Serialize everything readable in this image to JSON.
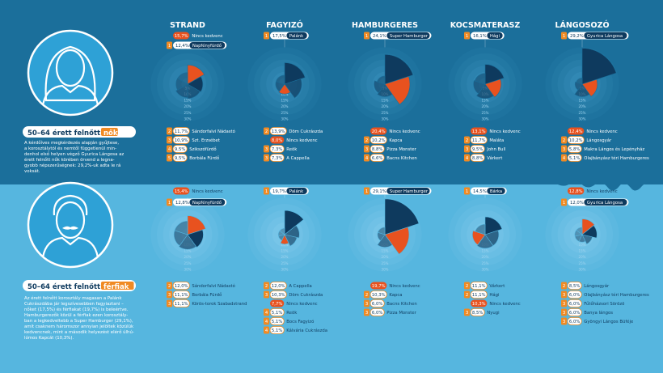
{
  "categories": [
    "STRAND",
    "FAGYIZÓ",
    "HAMBURGERES",
    "KOCSMATERASZ",
    "LÁNGOSOZÓ"
  ],
  "colors": {
    "top_bg": "#1b6f9b",
    "bottom_bg": "#56b6df",
    "navy": "#0e3a5e",
    "orange": "#e8521f",
    "rank_badge": "#f08a23"
  },
  "ring_labels": [
    "5%",
    "10%",
    "15%",
    "20%",
    "25%",
    "30%"
  ],
  "groups": [
    {
      "id": "women",
      "title_main": "50–64 érett felnőtt",
      "title_highlight": "nők",
      "description": [
        "A kérdőíves megkérdezés alapján gyűjtese,",
        "a korosztálytól és nemtől függetlenül min-",
        "denhol első helyen végző Gyurica Lángosa az",
        "érett felnőtt nők körében örvend a legna-",
        "gyobb népszerűségnek: 29,2%-uk adta le rá",
        "voksát."
      ],
      "columns": [
        {
          "tags": [
            {
              "pct": "15,7%",
              "label": "Nincs kedvenc",
              "rank": "",
              "kind": "none"
            },
            {
              "pct": "12,4%",
              "label": "Napfényfürdő",
              "rank": "1",
              "kind": "top"
            }
          ],
          "ranks": [
            {
              "rank": "2",
              "pct": "11,7%",
              "label": "Sándorfalvi Nádastó",
              "kind": "rank"
            },
            {
              "rank": "3",
              "pct": "10,9%",
              "label": "Szt. Erzsébet",
              "kind": "rank"
            },
            {
              "rank": "4",
              "pct": "9,5%",
              "label": "Szikszófürdő",
              "kind": "rank"
            },
            {
              "rank": "5",
              "pct": "9,5%",
              "label": "Borbála Fürdő",
              "kind": "rank"
            }
          ]
        },
        {
          "tags": [
            {
              "pct": "17,5%",
              "label": "Palánk",
              "rank": "1",
              "kind": "top"
            }
          ],
          "ranks": [
            {
              "rank": "2",
              "pct": "13,9%",
              "label": "Döm Cukrászda",
              "kind": "rank"
            },
            {
              "rank": "",
              "pct": "8,0%",
              "label": "Nincs kedvenc",
              "kind": "none"
            },
            {
              "rank": "3",
              "pct": "7,3%",
              "label": "Reök",
              "kind": "rank"
            },
            {
              "rank": "3",
              "pct": "7,3%",
              "label": "A Cappella",
              "kind": "rank"
            }
          ]
        },
        {
          "tags": [
            {
              "pct": "24,1%",
              "label": "Super Hamburger",
              "rank": "1",
              "kind": "top"
            }
          ],
          "ranks": [
            {
              "rank": "",
              "pct": "20,4%",
              "label": "Nincs kedvenc",
              "kind": "none"
            },
            {
              "rank": "2",
              "pct": "10,2%",
              "label": "Kapca",
              "kind": "rank"
            },
            {
              "rank": "3",
              "pct": "8,8%",
              "label": "Pizza Monster",
              "kind": "rank"
            },
            {
              "rank": "4",
              "pct": "6,6%",
              "label": "Bacns Kitchen",
              "kind": "rank"
            }
          ]
        },
        {
          "tags": [
            {
              "pct": "16,1%",
              "label": "Hági",
              "rank": "1",
              "kind": "top"
            }
          ],
          "ranks": [
            {
              "rank": "",
              "pct": "13,1%",
              "label": "Nincs kedvenc",
              "kind": "none"
            },
            {
              "rank": "2",
              "pct": "11,7%",
              "label": "Maláta",
              "kind": "rank"
            },
            {
              "rank": "3",
              "pct": "9,5%",
              "label": "John Bull",
              "kind": "rank"
            },
            {
              "rank": "4",
              "pct": "8,8%",
              "label": "Várkert",
              "kind": "rank"
            }
          ]
        },
        {
          "tags": [
            {
              "pct": "29,2%",
              "label": "Gyurica Lángosa",
              "rank": "1",
              "kind": "top"
            }
          ],
          "ranks": [
            {
              "rank": "",
              "pct": "12,4%",
              "label": "Nincs kedvenc",
              "kind": "none"
            },
            {
              "rank": "2",
              "pct": "10,2%",
              "label": "Lángosgyár",
              "kind": "rank"
            },
            {
              "rank": "3",
              "pct": "5,8%",
              "label": "Makra Lángos és Lepényház",
              "kind": "rank"
            },
            {
              "rank": "4",
              "pct": "5,1%",
              "label": "Olajbányász téri Hamburgeres",
              "kind": "rank"
            }
          ]
        }
      ]
    },
    {
      "id": "men",
      "title_main": "50–64 érett felnőtt",
      "title_highlight": "férfiak",
      "description": [
        "Az érett felnőtt korosztály magasan a Palánk",
        "Cukrászdába jár legszívesebben fagyiaztani –",
        "nőket (17,5%) és férfiakat (19,7%) is beleértve.",
        "Hamburgerezők közül a férfiak ezen korosztály-",
        "ban a legkedveltebb a Super Hamburger (29,1%),",
        "amit csaknem háromszor annyian jelöltek közülük",
        "kedvencnek, mint a második helyezést elérő úlhú-",
        "lómos Kapcát (10,3%)."
      ],
      "columns": [
        {
          "tags": [
            {
              "pct": "15,4%",
              "label": "Nincs kedvenc",
              "rank": "",
              "kind": "none"
            },
            {
              "pct": "12,8%",
              "label": "Napfényfürdő",
              "rank": "1",
              "kind": "top"
            }
          ],
          "ranks": [
            {
              "rank": "2",
              "pct": "12,0%",
              "label": "Sándorfalvi Nádastó",
              "kind": "rank"
            },
            {
              "rank": "3",
              "pct": "11,1%",
              "label": "Borbála Fürdő",
              "kind": "rank"
            },
            {
              "rank": "3",
              "pct": "11,1%",
              "label": "Körös-torok Szabadstrand",
              "kind": "rank"
            }
          ]
        },
        {
          "tags": [
            {
              "pct": "19,7%",
              "label": "Palánk",
              "rank": "1",
              "kind": "top"
            }
          ],
          "ranks": [
            {
              "rank": "2",
              "pct": "12,0%",
              "label": "A Cappella",
              "kind": "rank"
            },
            {
              "rank": "3",
              "pct": "10,3%",
              "label": "Döm Cukrászda",
              "kind": "rank"
            },
            {
              "rank": "",
              "pct": "7,7%",
              "label": "Nincs kedvenc",
              "kind": "none"
            },
            {
              "rank": "4",
              "pct": "5,1%",
              "label": "Reök",
              "kind": "rank"
            },
            {
              "rank": "4",
              "pct": "5,1%",
              "label": "Bocs Fagyizó",
              "kind": "rank"
            },
            {
              "rank": "4",
              "pct": "5,1%",
              "label": "Kálvária Cukrászda",
              "kind": "rank"
            }
          ]
        },
        {
          "tags": [
            {
              "pct": "29,1%",
              "label": "Super Hamburger",
              "rank": "1",
              "kind": "top"
            }
          ],
          "ranks": [
            {
              "rank": "",
              "pct": "19,7%",
              "label": "Nincs kedvenc",
              "kind": "none"
            },
            {
              "rank": "2",
              "pct": "10,3%",
              "label": "Kapca",
              "kind": "rank"
            },
            {
              "rank": "3",
              "pct": "6,0%",
              "label": "Bacns Kitchen",
              "kind": "rank"
            },
            {
              "rank": "3",
              "pct": "6,0%",
              "label": "Pizza Monster",
              "kind": "rank"
            }
          ]
        },
        {
          "tags": [
            {
              "pct": "14,5%",
              "label": "Bárka",
              "rank": "1",
              "kind": "top"
            }
          ],
          "ranks": [
            {
              "rank": "2",
              "pct": "11,1%",
              "label": "Várkert",
              "kind": "rank"
            },
            {
              "rank": "2",
              "pct": "11,1%",
              "label": "Hági",
              "kind": "rank"
            },
            {
              "rank": "",
              "pct": "10,3%",
              "label": "Nincs kedvenc",
              "kind": "none"
            },
            {
              "rank": "3",
              "pct": "8,5%",
              "label": "Nyugi",
              "kind": "rank"
            }
          ]
        },
        {
          "tags": [
            {
              "pct": "12,8%",
              "label": "Nincs kedvenc",
              "rank": "",
              "kind": "none"
            },
            {
              "pct": "12,0%",
              "label": "Gyurica Lángosa",
              "rank": "1",
              "kind": "top"
            }
          ],
          "ranks": [
            {
              "rank": "2",
              "pct": "8,5%",
              "label": "Lángosgyár",
              "kind": "rank"
            },
            {
              "rank": "3",
              "pct": "6,0%",
              "label": "Olajbányász téri Hamburgeres",
              "kind": "rank"
            },
            {
              "rank": "3",
              "pct": "6,0%",
              "label": "Fűtőházsori Sörözö",
              "kind": "rank"
            },
            {
              "rank": "3",
              "pct": "6,0%",
              "label": "Banya lángos",
              "kind": "rank"
            },
            {
              "rank": "3",
              "pct": "6,0%",
              "label": "Gyöngyi Lángos Büféje",
              "kind": "rank"
            }
          ]
        }
      ]
    }
  ]
}
